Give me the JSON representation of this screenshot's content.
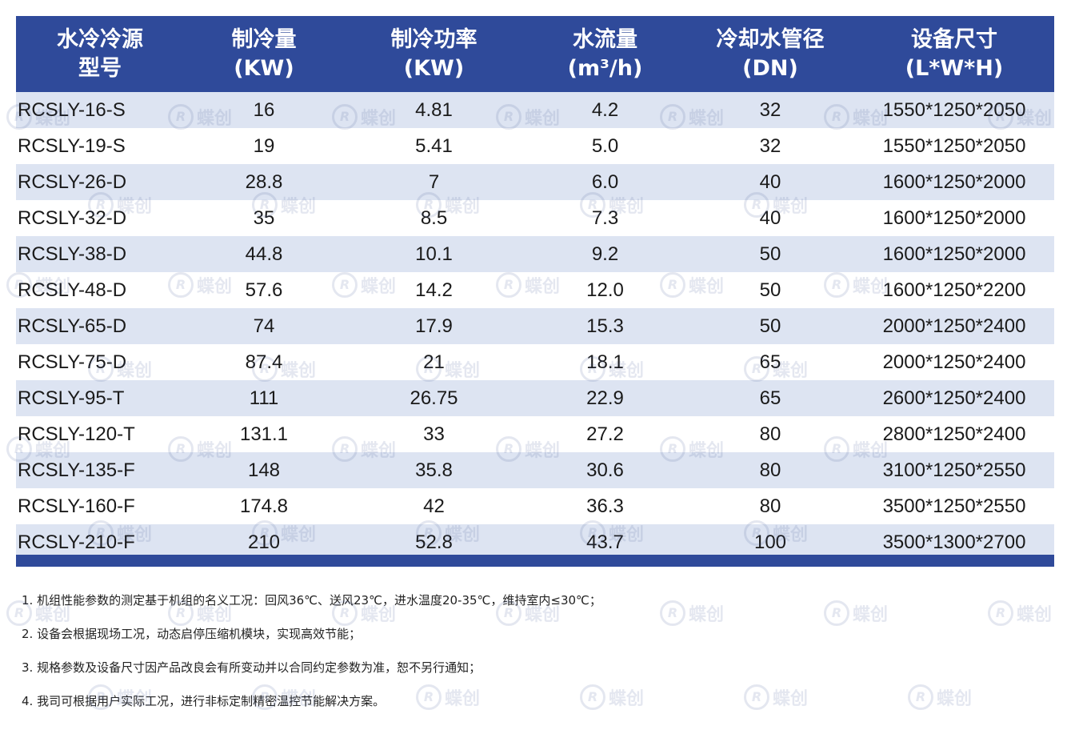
{
  "table": {
    "headers": [
      "水冷冷源\n型号",
      "制冷量\n(KW)",
      "制冷功率\n(KW)",
      "水流量\n(m³/h)",
      "冷却水管径\n(DN)",
      "设备尺寸\n(L*W*H)"
    ],
    "rows": [
      [
        "RCSLY-16-S",
        "16",
        "4.81",
        "4.2",
        "32",
        "1550*1250*2050"
      ],
      [
        "RCSLY-19-S",
        "19",
        "5.41",
        "5.0",
        "32",
        "1550*1250*2050"
      ],
      [
        "RCSLY-26-D",
        "28.8",
        "7",
        "6.0",
        "40",
        "1600*1250*2000"
      ],
      [
        "RCSLY-32-D",
        "35",
        "8.5",
        "7.3",
        "40",
        "1600*1250*2000"
      ],
      [
        "RCSLY-38-D",
        "44.8",
        "10.1",
        "9.2",
        "50",
        "1600*1250*2000"
      ],
      [
        "RCSLY-48-D",
        "57.6",
        "14.2",
        "12.0",
        "50",
        "1600*1250*2200"
      ],
      [
        "RCSLY-65-D",
        "74",
        "17.9",
        "15.3",
        "50",
        "2000*1250*2400"
      ],
      [
        "RCSLY-75-D",
        "87.4",
        "21",
        "18.1",
        "65",
        "2000*1250*2400"
      ],
      [
        "RCSLY-95-T",
        "111",
        "26.75",
        "22.9",
        "65",
        "2600*1250*2400"
      ],
      [
        "RCSLY-120-T",
        "131.1",
        "33",
        "27.2",
        "80",
        "2800*1250*2400"
      ],
      [
        "RCSLY-135-F",
        "148",
        "35.8",
        "30.6",
        "80",
        "3100*1250*2550"
      ],
      [
        "RCSLY-160-F",
        "174.8",
        "42",
        "36.3",
        "80",
        "3500*1250*2550"
      ],
      [
        "RCSLY-210-F",
        "210",
        "52.8",
        "43.7",
        "100",
        "3500*1300*2700"
      ]
    ]
  },
  "notes": [
    "1. 机组性能参数的测定基于机组的名义工况：回风36℃、送风23℃，进水温度20-35℃，维持室内≤30℃；",
    "2. 设备会根据现场工况，动态启停压缩机模块，实现高效节能；",
    "3. 规格参数及设备尺寸因产品改良会有所变动并以合同约定参数为准，恕不另行通知；",
    "4. 我司可根据用户实际工况，进行非标定制精密温控节能解决方案。"
  ],
  "watermark": {
    "letter": "R",
    "text": "蝶创"
  },
  "colors": {
    "header": "#2f4a9a",
    "stripe": "#dde4f2"
  }
}
